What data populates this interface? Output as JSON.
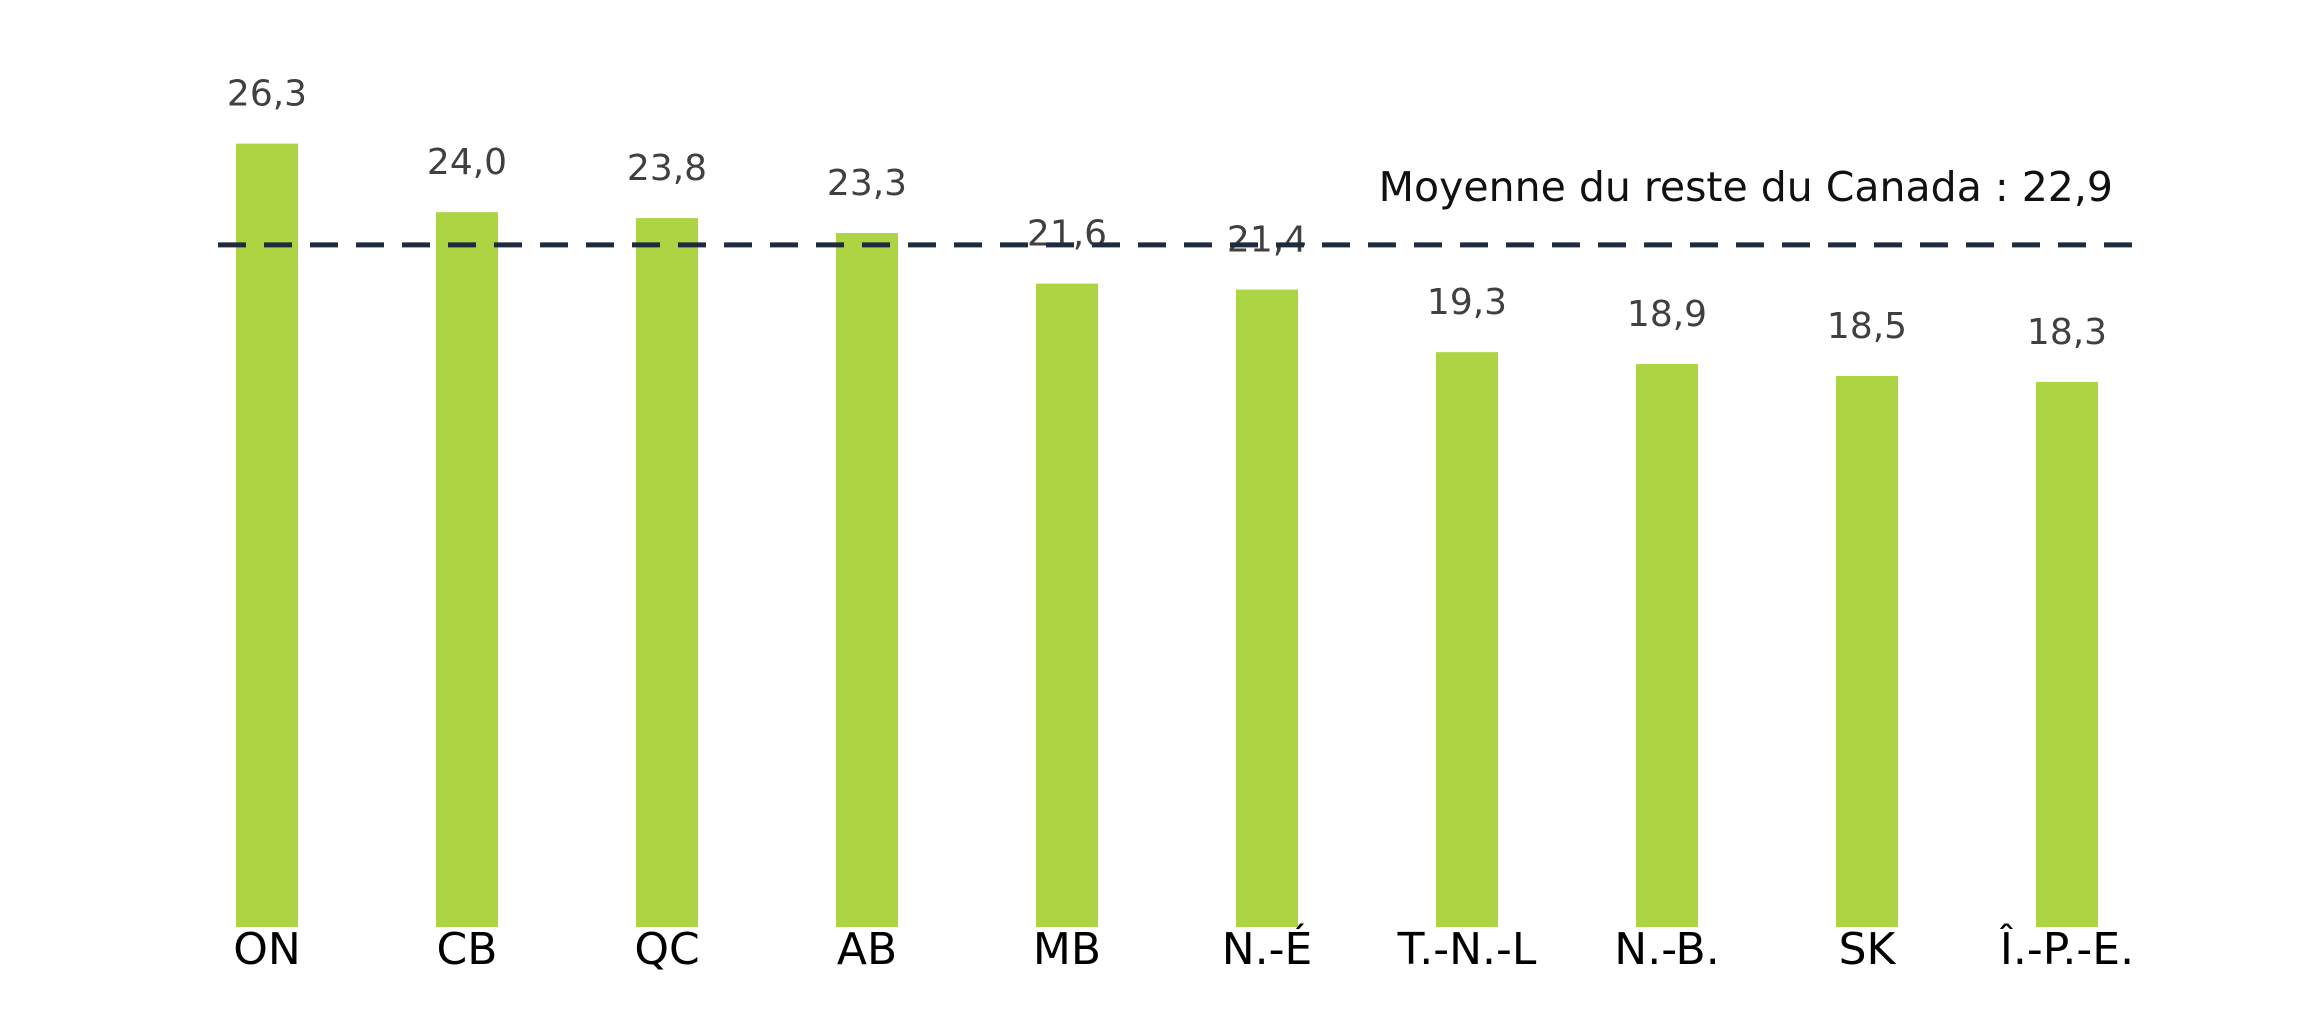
{
  "chart_data": {
    "type": "bar",
    "categories": [
      "ON",
      "CB",
      "QC",
      "AB",
      "MB",
      "N.-É",
      "T.-N.-L",
      "N.-B.",
      "SK",
      "Î.-P.-E."
    ],
    "values": [
      26.3,
      24.0,
      23.8,
      23.3,
      21.6,
      21.4,
      19.3,
      18.9,
      18.5,
      18.3
    ],
    "value_labels": [
      "26,3",
      "24,0",
      "23,8",
      "23,3",
      "21,6",
      "21,4",
      "19,3",
      "18,9",
      "18,5",
      "18,3"
    ],
    "color": "#acd443",
    "ylim": [
      0,
      28
    ],
    "reference_line": {
      "value": 22.9,
      "label": "Moyenne du reste du Canada : 22,9",
      "color": "#1f2a3c"
    }
  }
}
